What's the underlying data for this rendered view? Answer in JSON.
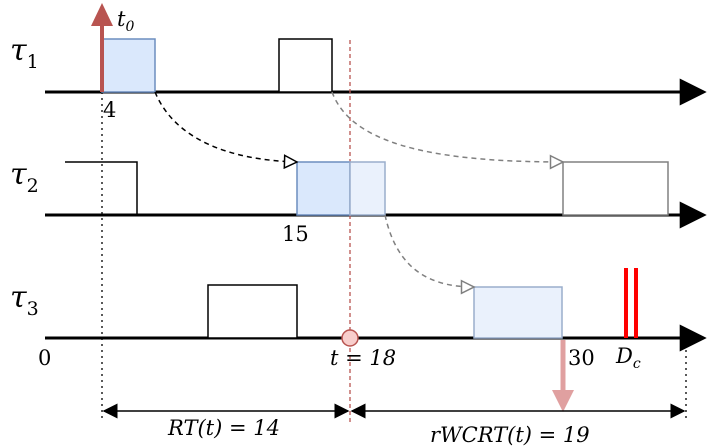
{
  "tasks": [
    {
      "name": "τ",
      "sub": "1"
    },
    {
      "name": "τ",
      "sub": "2"
    },
    {
      "name": "τ",
      "sub": "3"
    }
  ],
  "release": {
    "symbol": "t",
    "sub": "0"
  },
  "labels": {
    "origin": "0",
    "t1_value": "4",
    "t2_value": "15",
    "current_time": "t = 18",
    "thirty": "30",
    "deadline": "D",
    "deadline_sub": "c",
    "rt": "RT(t) = 14",
    "rwcrt": "rWCRT(t) = 19"
  },
  "colors": {
    "release_arrow": "#b85450",
    "highlight_fill": "#dae8fc",
    "highlight_light": "#eaf1fc",
    "highlight_stroke": "#6c8ebf",
    "future_stroke": "#9aaecc",
    "deadline": "#ff0000",
    "current_time_line": "#b85450",
    "current_marker": "#f8cecc",
    "finish_arrow": "#e0a0a0",
    "dashed_black": "#000000",
    "dashed_gray": "#808080"
  }
}
